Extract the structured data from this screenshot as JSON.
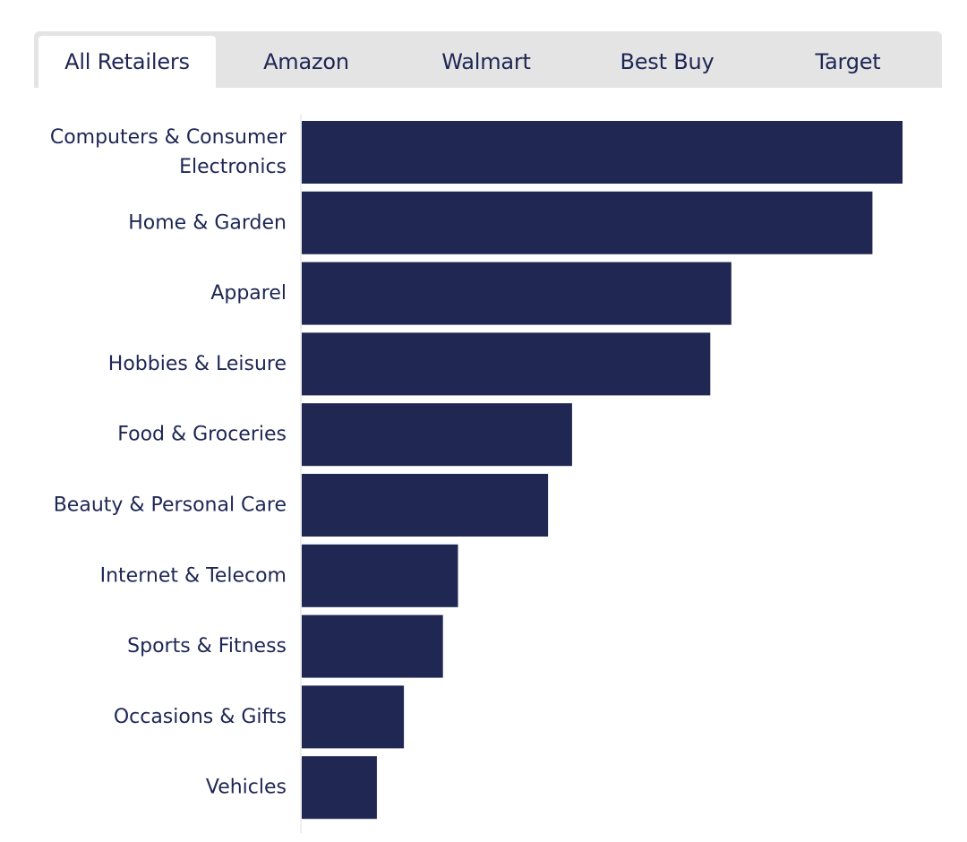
{
  "tabs": [
    {
      "label": "All Retailers",
      "active": true
    },
    {
      "label": "Amazon",
      "active": false
    },
    {
      "label": "Walmart",
      "active": false
    },
    {
      "label": "Best Buy",
      "active": false
    },
    {
      "label": "Target",
      "active": false
    }
  ],
  "colors": {
    "bar": "#1f2752",
    "text": "#1e2654",
    "tab_bg": "#e4e4e4",
    "axis": "#dddddd"
  },
  "chart_data": {
    "type": "bar",
    "orientation": "horizontal",
    "title": "",
    "xlabel": "",
    "ylabel": "",
    "grid": false,
    "categories": [
      [
        "Computers & Consumer",
        "Electronics"
      ],
      [
        "Home & Garden"
      ],
      [
        "Apparel"
      ],
      [
        "Hobbies & Leisure"
      ],
      [
        "Food & Groceries"
      ],
      [
        "Beauty & Personal Care"
      ],
      [
        "Internet & Telecom"
      ],
      [
        "Sports & Fitness"
      ],
      [
        "Occasions & Gifts"
      ],
      [
        "Vehicles"
      ]
    ],
    "values": [
      100,
      95,
      71.5,
      68,
      45,
      41,
      26,
      23.5,
      17,
      12.5
    ],
    "xlim": [
      0,
      100
    ]
  }
}
